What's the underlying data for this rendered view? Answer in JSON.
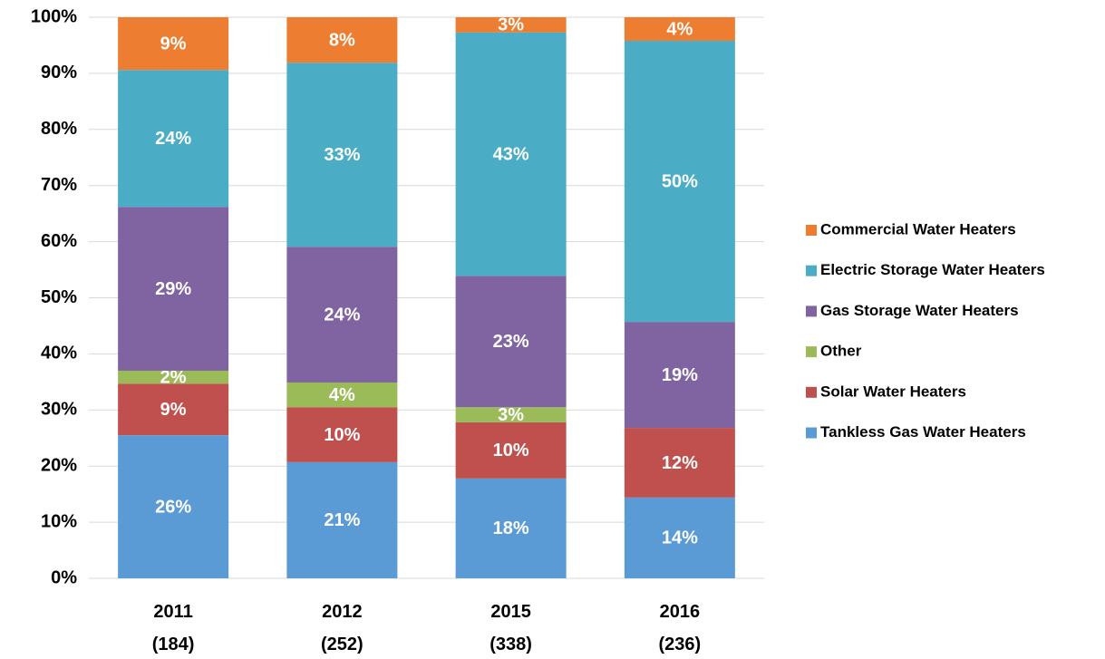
{
  "chart_data": {
    "type": "stacked_bar",
    "categories": [
      "2011\n(184)",
      "2012\n(252)",
      "2015\n(338)",
      "2016\n(236)"
    ],
    "series": [
      {
        "name": "Tankless Gas Water Heaters",
        "color": "#5b9bd5",
        "values": [
          25.5,
          20.7,
          17.8,
          14.4
        ],
        "value_labels": [
          "26%",
          "21%",
          "18%",
          "14%"
        ]
      },
      {
        "name": "Solar Water Heaters",
        "color": "#c0504d",
        "values": [
          9.2,
          9.8,
          10.0,
          12.4
        ],
        "value_labels": [
          "9%",
          "10%",
          "10%",
          "12%"
        ]
      },
      {
        "name": "Other",
        "color": "#9bbb59",
        "values": [
          2.3,
          4.4,
          2.7,
          0
        ],
        "value_labels": [
          "2%",
          "4%",
          "3%",
          null
        ]
      },
      {
        "name": "Gas Storage Water Heaters",
        "color": "#8064a2",
        "values": [
          29.2,
          24.2,
          23.4,
          18.9
        ],
        "value_labels": [
          "29%",
          "24%",
          "23%",
          "19%"
        ]
      },
      {
        "name": "Electric Storage Water Heaters",
        "color": "#4bacc6",
        "values": [
          24.4,
          32.8,
          43.4,
          50.1
        ],
        "value_labels": [
          "24%",
          "33%",
          "43%",
          "50%"
        ]
      },
      {
        "name": "Commercial Water Heaters",
        "color": "#ed7d31",
        "values": [
          9.4,
          8.1,
          2.7,
          4.2
        ],
        "value_labels": [
          "9%",
          "8%",
          "3%",
          "4%"
        ]
      }
    ],
    "ylim": [
      0,
      100
    ],
    "yticks": [
      {
        "value": 0,
        "label": "0%"
      },
      {
        "value": 10,
        "label": "10%"
      },
      {
        "value": 20,
        "label": "20%"
      },
      {
        "value": 30,
        "label": "30%"
      },
      {
        "value": 40,
        "label": "40%"
      },
      {
        "value": 50,
        "label": "50%"
      },
      {
        "value": 60,
        "label": "60%"
      },
      {
        "value": 70,
        "label": "70%"
      },
      {
        "value": 80,
        "label": "80%"
      },
      {
        "value": 90,
        "label": "90%"
      },
      {
        "value": 100,
        "label": "100%"
      }
    ],
    "grid": true,
    "legend": "right"
  }
}
